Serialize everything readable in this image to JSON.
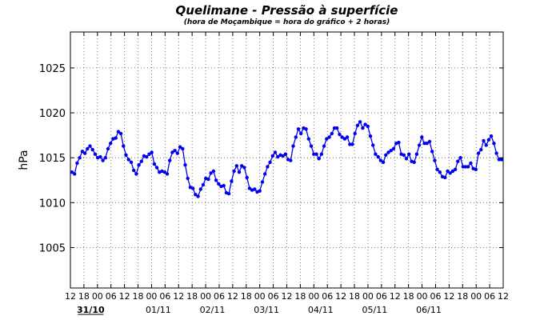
{
  "chart_data": {
    "type": "line",
    "title": "Quelimane - Pressão à superfície",
    "subtitle": "(hora de Moçambique = hora do gráfico + 2 horas)",
    "ylabel": "hPa",
    "xlabel": "",
    "ylim": [
      1000.5,
      1029
    ],
    "yticks": [
      1005,
      1010,
      1015,
      1020,
      1025
    ],
    "grid": true,
    "x_tick_labels": [
      "12",
      "18",
      "00",
      "06",
      "12",
      "18",
      "00",
      "06",
      "12",
      "18",
      "00",
      "06",
      "12",
      "18",
      "00",
      "06",
      "12",
      "18",
      "00",
      "06",
      "12",
      "18",
      "00",
      "06",
      "12",
      "18",
      "00",
      "06",
      "12",
      "18",
      "00",
      "06",
      "12"
    ],
    "date_labels": [
      {
        "label": "31/10",
        "bold": true
      },
      {
        "label": "01/11",
        "bold": false
      },
      {
        "label": "02/11",
        "bold": false
      },
      {
        "label": "03/11",
        "bold": false
      },
      {
        "label": "04/11",
        "bold": false
      },
      {
        "label": "05/11",
        "bold": false
      },
      {
        "label": "06/11",
        "bold": false
      }
    ],
    "colors": {
      "series": "#0000ee",
      "grid": "#555555",
      "axes": "#000000"
    },
    "series": [
      {
        "values": [
          1013.4,
          1013.2,
          1014.4,
          1015.0,
          1015.7,
          1015.5,
          1016.0,
          1016.3,
          1015.9,
          1015.4,
          1015.0,
          1015.1,
          1014.7,
          1015.0,
          1016.0,
          1016.6,
          1017.1,
          1017.2,
          1017.9,
          1017.7,
          1016.3,
          1015.3,
          1014.8,
          1014.5,
          1013.6,
          1013.2,
          1014.2,
          1014.6,
          1015.2,
          1015.1,
          1015.4,
          1015.6,
          1014.3,
          1013.9,
          1013.4,
          1013.5,
          1013.4,
          1013.2,
          1014.7,
          1015.6,
          1015.8,
          1015.5,
          1016.2,
          1016.0,
          1014.2,
          1012.7,
          1011.7,
          1011.6,
          1010.9,
          1010.7,
          1011.5,
          1012.0,
          1012.7,
          1012.6,
          1013.3,
          1013.5,
          1012.5,
          1012.1,
          1011.8,
          1011.9,
          1011.1,
          1011.0,
          1012.4,
          1013.5,
          1014.1,
          1013.4,
          1014.1,
          1013.9,
          1012.8,
          1011.6,
          1011.4,
          1011.5,
          1011.2,
          1011.3,
          1012.3,
          1013.2,
          1014.0,
          1014.5,
          1015.2,
          1015.6,
          1015.1,
          1015.3,
          1015.2,
          1015.4,
          1014.8,
          1014.7,
          1016.3,
          1017.3,
          1018.2,
          1017.7,
          1018.3,
          1018.2,
          1017.1,
          1016.3,
          1015.4,
          1015.4,
          1014.9,
          1015.4,
          1016.3,
          1017.1,
          1017.3,
          1017.7,
          1018.3,
          1018.3,
          1017.6,
          1017.3,
          1017.1,
          1017.3,
          1016.5,
          1016.5,
          1017.7,
          1018.6,
          1019.0,
          1018.3,
          1018.7,
          1018.5,
          1017.4,
          1016.4,
          1015.4,
          1015.1,
          1014.7,
          1014.5,
          1015.3,
          1015.6,
          1015.8,
          1016.0,
          1016.6,
          1016.7,
          1015.4,
          1015.3,
          1014.9,
          1015.4,
          1014.6,
          1014.5,
          1015.4,
          1016.4,
          1017.3,
          1016.6,
          1016.6,
          1016.8,
          1015.7,
          1014.7,
          1013.7,
          1013.4,
          1012.9,
          1012.8,
          1013.5,
          1013.3,
          1013.5,
          1013.7,
          1014.6,
          1015.0,
          1014.0,
          1014.0,
          1014.0,
          1014.4,
          1013.8,
          1013.7,
          1015.5,
          1015.9,
          1016.9,
          1016.4,
          1017.0,
          1017.4,
          1016.6,
          1015.5,
          1014.8,
          1014.8
        ]
      }
    ]
  }
}
